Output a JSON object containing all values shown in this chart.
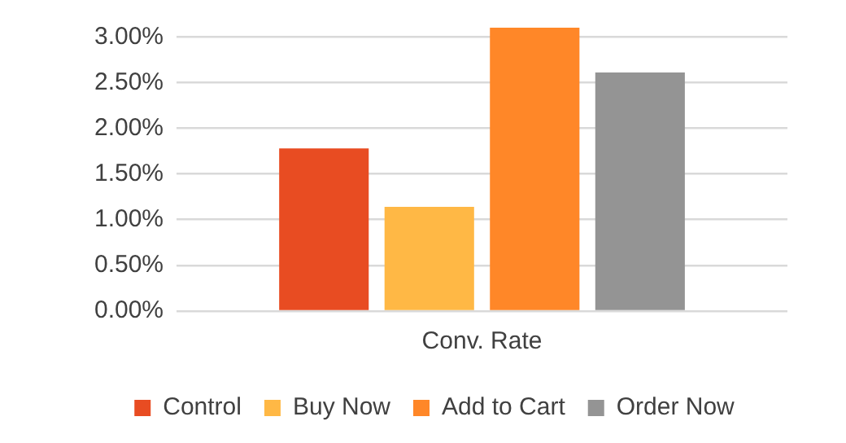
{
  "chart_data": {
    "type": "bar",
    "categories": [
      "Conv. Rate"
    ],
    "series": [
      {
        "name": "Control",
        "color": "#e84c22",
        "values": [
          1.78
        ]
      },
      {
        "name": "Buy Now",
        "color": "#ffb845",
        "values": [
          1.14
        ]
      },
      {
        "name": "Add to Cart",
        "color": "#ff8728",
        "values": [
          3.1
        ]
      },
      {
        "name": "Order Now",
        "color": "#949494",
        "values": [
          2.61
        ]
      }
    ],
    "ylim": [
      0,
      3.1
    ],
    "yticks": [
      {
        "value": 0,
        "label": "0.00%"
      },
      {
        "value": 0.5,
        "label": "0.50%"
      },
      {
        "value": 1,
        "label": "1.00%"
      },
      {
        "value": 1.5,
        "label": "1.50%"
      },
      {
        "value": 2,
        "label": "2.00%"
      },
      {
        "value": 2.5,
        "label": "2.50%"
      },
      {
        "value": 3,
        "label": "3.00%"
      }
    ],
    "grid": "y",
    "legend": "bottom"
  }
}
